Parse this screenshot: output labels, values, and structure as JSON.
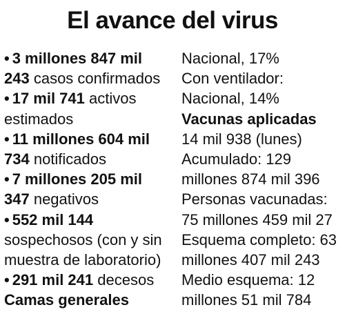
{
  "title": "El avance del virus",
  "left_lines": [
    [
      {
        "t": "3 millones 847 mil",
        "b": true,
        "bullet": true
      }
    ],
    [
      {
        "t": "243",
        "b": true
      },
      {
        "t": " casos confirmados",
        "b": false
      }
    ],
    [
      {
        "t": "17 mil 741",
        "b": true,
        "bullet": true
      },
      {
        "t": " activos",
        "b": false
      }
    ],
    [
      {
        "t": "estimados",
        "b": false
      }
    ],
    [
      {
        "t": "11 millones 604 mil",
        "b": true,
        "bullet": true
      }
    ],
    [
      {
        "t": "734",
        "b": true
      },
      {
        "t": " notificados",
        "b": false
      }
    ],
    [
      {
        "t": "7 millones 205 mil",
        "b": true,
        "bullet": true
      }
    ],
    [
      {
        "t": "347",
        "b": true
      },
      {
        "t": " negativos",
        "b": false
      }
    ],
    [
      {
        "t": "552 mil 144",
        "b": true,
        "bullet": true
      }
    ],
    [
      {
        "t": "sospechosos (con y sin",
        "b": false
      }
    ],
    [
      {
        "t": "muestra de laboratorio)",
        "b": false
      }
    ],
    [
      {
        "t": "291 mil 241",
        "b": true,
        "bullet": true
      },
      {
        "t": " decesos",
        "b": false
      }
    ],
    [
      {
        "t": "Camas generales",
        "b": true
      }
    ]
  ],
  "right_lines": [
    [
      {
        "t": "Nacional, 17%",
        "b": false
      }
    ],
    [
      {
        "t": "Con ventilador:",
        "b": false
      }
    ],
    [
      {
        "t": "Nacional, 14%",
        "b": false
      }
    ],
    [
      {
        "t": "Vacunas aplicadas",
        "b": true
      }
    ],
    [
      {
        "t": "14 mil 938 (lunes)",
        "b": false
      }
    ],
    [
      {
        "t": "Acumulado: 129",
        "b": false
      }
    ],
    [
      {
        "t": "millones 874 mil 396",
        "b": false
      }
    ],
    [
      {
        "t": "Personas vacunadas:",
        "b": false
      }
    ],
    [
      {
        "t": "75 millones 459 mil 27",
        "b": false
      }
    ],
    [
      {
        "t": "Esquema completo: 63",
        "b": false
      }
    ],
    [
      {
        "t": "millones 407 mil 243",
        "b": false
      }
    ],
    [
      {
        "t": "Medio esquema: 12",
        "b": false
      }
    ],
    [
      {
        "t": "millones 51 mil 784",
        "b": false
      }
    ]
  ]
}
